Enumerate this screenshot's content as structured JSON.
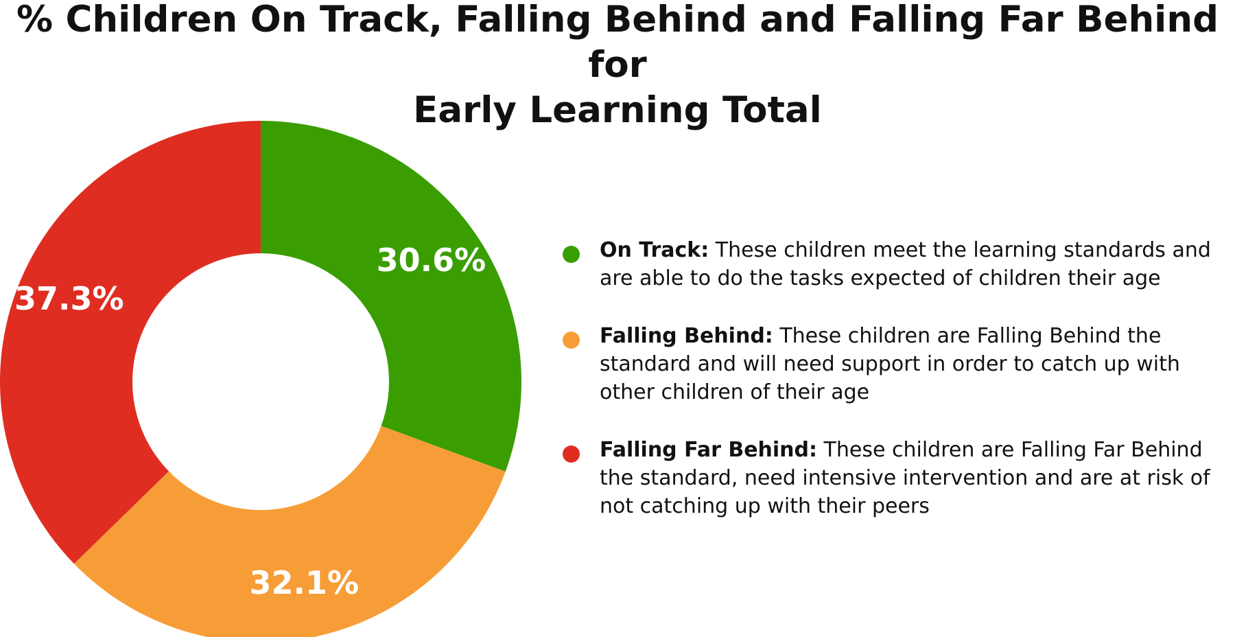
{
  "title": {
    "line1": "% Children On Track, Falling Behind and Falling Far Behind for",
    "line2": "Early Learning Total"
  },
  "chart_data": {
    "type": "pie",
    "title": "% Children On Track, Falling Behind and Falling Far Behind for Early Learning Total",
    "donut": true,
    "start": "12 o'clock, clockwise",
    "slices": [
      {
        "name": "On Track",
        "value": 30.6,
        "label": "30.6%",
        "color": "#3a9e03"
      },
      {
        "name": "Falling Behind",
        "value": 32.1,
        "label": "32.1%",
        "color": "#f79d38"
      },
      {
        "name": "Falling Far Behind",
        "value": 37.3,
        "label": "37.3%",
        "color": "#df2d22"
      }
    ],
    "legend_position": "right"
  },
  "legend": [
    {
      "term": "On Track:",
      "description": " These children meet the learning standards and are able to do the tasks expected of children their age",
      "color": "#3a9e03"
    },
    {
      "term": "Falling Behind:",
      "description": " These children are Falling Behind the standard and will need support in order to catch up with other children of their age",
      "color": "#f79d38"
    },
    {
      "term": "Falling Far Behind:",
      "description": " These children are Falling Far Behind the standard, need intensive intervention and are at risk of not catching up with their peers",
      "color": "#df2d22"
    }
  ]
}
